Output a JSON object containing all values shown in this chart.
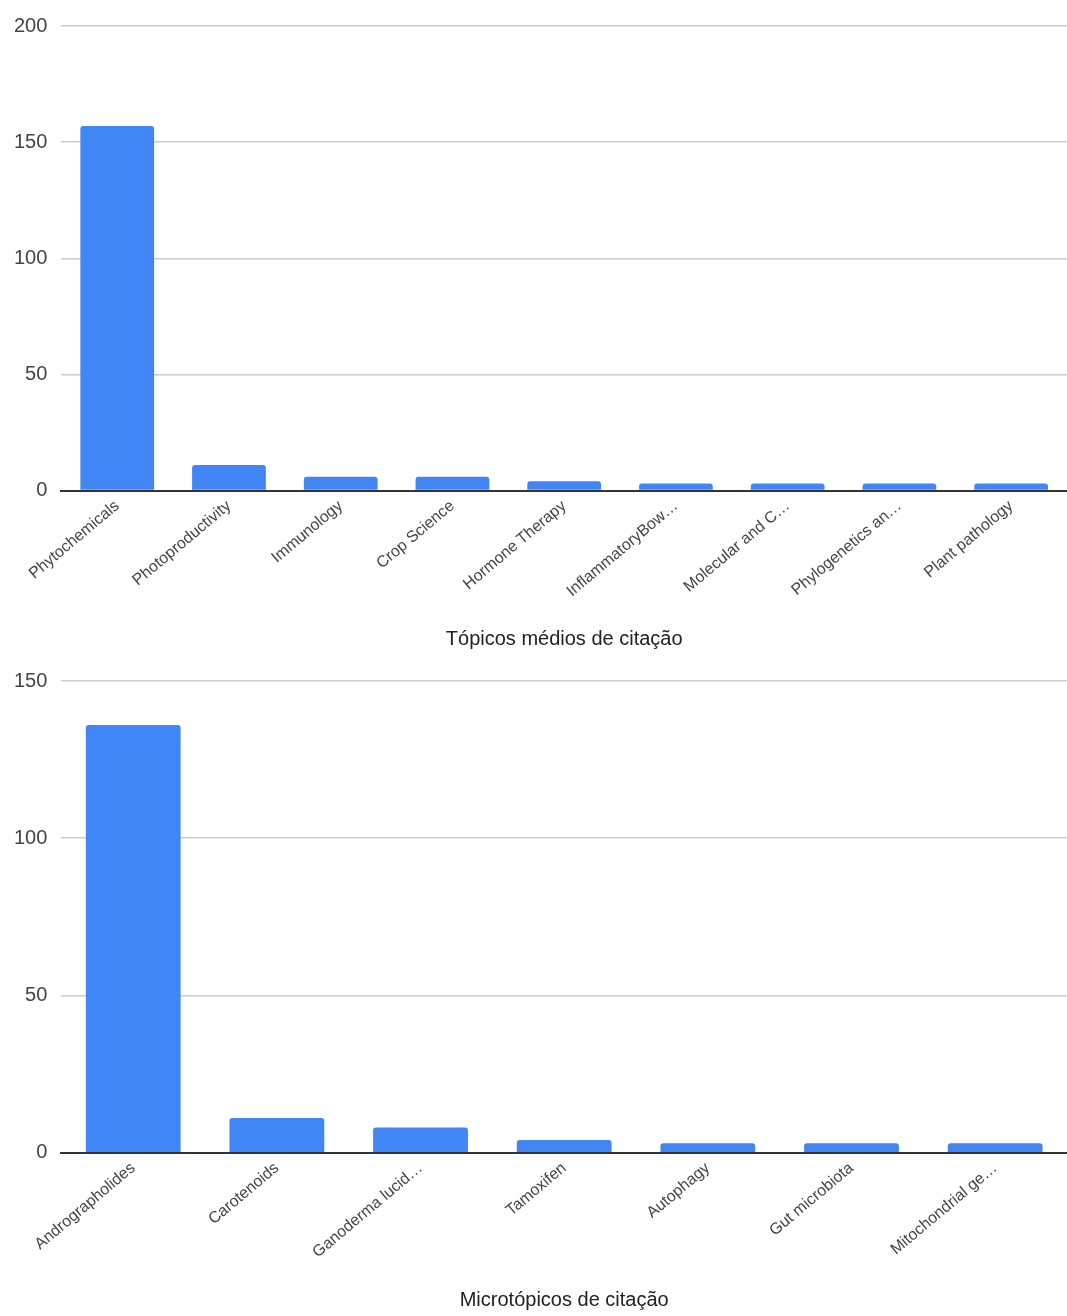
{
  "chart_data": [
    {
      "type": "bar",
      "xlabel": "Tópicos médios de citação",
      "categories": [
        "Phytochemicals",
        "Photoproductivity",
        "Immunology",
        "Crop Science",
        "Hormone Therapy",
        "InflammatoryBow…",
        "Molecular and C…",
        "Phylogenetics an…",
        "Plant pathology"
      ],
      "values": [
        157,
        11,
        6,
        6,
        4,
        3,
        3,
        3,
        3
      ],
      "color": "#4285f4",
      "ylim": [
        0,
        200
      ],
      "yticks": [
        0,
        50,
        100,
        150,
        200
      ],
      "grid": "y"
    },
    {
      "type": "bar",
      "xlabel": "Microtópicos de citação",
      "categories": [
        "Andrographolides",
        "Carotenoids",
        "Ganoderma lucid…",
        "Tamoxifen",
        "Autophagy",
        "Gut microbiota",
        "Mitochondrial ge…"
      ],
      "values": [
        136,
        11,
        8,
        4,
        3,
        3,
        3
      ],
      "color": "#4285f4",
      "ylim": [
        0,
        150
      ],
      "yticks": [
        0,
        50,
        100,
        150
      ],
      "grid": "y"
    }
  ]
}
